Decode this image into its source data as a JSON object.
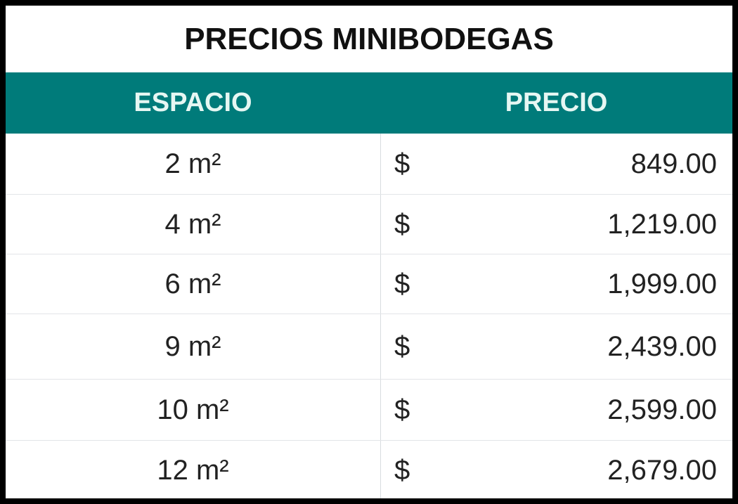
{
  "title": "PRECIOS MINIBODEGAS",
  "colors": {
    "header_bg": "#007b7a",
    "header_text": "#e6f7f3"
  },
  "columns": [
    "ESPACIO",
    "PRECIO"
  ],
  "rows": [
    {
      "espacio": "2 m²",
      "currency": "$",
      "precio": "849.00"
    },
    {
      "espacio": "4 m²",
      "currency": "$",
      "precio": "1,219.00"
    },
    {
      "espacio": "6 m²",
      "currency": "$",
      "precio": "1,999.00"
    },
    {
      "espacio": "9 m²",
      "currency": "$",
      "precio": "2,439.00"
    },
    {
      "espacio": "10 m²",
      "currency": "$",
      "precio": "2,599.00"
    },
    {
      "espacio": "12 m²",
      "currency": "$",
      "precio": "2,679.00"
    }
  ]
}
